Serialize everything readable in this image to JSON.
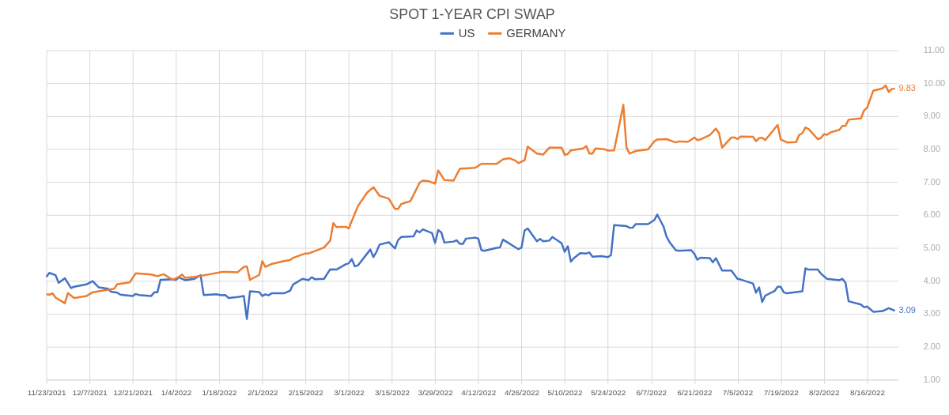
{
  "chart_data": {
    "type": "line",
    "title": "SPOT 1-YEAR CPI SWAP",
    "legend": "top",
    "grid": true,
    "line_style": "solid",
    "xlim": [
      "2021-11-23",
      "2022-08-26"
    ],
    "ylim": [
      1,
      11
    ],
    "xticks": [
      {
        "value": "2021-11-23",
        "label": "11/23/2021"
      },
      {
        "value": "2021-12-07",
        "label": "12/7/2021"
      },
      {
        "value": "2021-12-21",
        "label": "12/21/2021"
      },
      {
        "value": "2022-01-04",
        "label": "1/4/2022"
      },
      {
        "value": "2022-01-18",
        "label": "1/18/2022"
      },
      {
        "value": "2022-02-01",
        "label": "2/1/2022"
      },
      {
        "value": "2022-02-15",
        "label": "2/15/2022"
      },
      {
        "value": "2022-03-01",
        "label": "3/1/2022"
      },
      {
        "value": "2022-03-15",
        "label": "3/15/2022"
      },
      {
        "value": "2022-03-29",
        "label": "3/29/2022"
      },
      {
        "value": "2022-04-12",
        "label": "4/12/2022"
      },
      {
        "value": "2022-04-26",
        "label": "4/26/2022"
      },
      {
        "value": "2022-05-10",
        "label": "5/10/2022"
      },
      {
        "value": "2022-05-24",
        "label": "5/24/2022"
      },
      {
        "value": "2022-06-07",
        "label": "6/7/2022"
      },
      {
        "value": "2022-06-21",
        "label": "6/21/2022"
      },
      {
        "value": "2022-07-05",
        "label": "7/5/2022"
      },
      {
        "value": "2022-07-19",
        "label": "7/19/2022"
      },
      {
        "value": "2022-08-02",
        "label": "8/2/2022"
      },
      {
        "value": "2022-08-16",
        "label": "8/16/2022"
      }
    ],
    "yticks": [
      {
        "value": 1,
        "label": "1.00"
      },
      {
        "value": 2,
        "label": "2.00"
      },
      {
        "value": 3,
        "label": "3.00"
      },
      {
        "value": 4,
        "label": "4.00"
      },
      {
        "value": 5,
        "label": "5.00"
      },
      {
        "value": 6,
        "label": "6.00"
      },
      {
        "value": 7,
        "label": "7.00"
      },
      {
        "value": 8,
        "label": "8.00"
      },
      {
        "value": 9,
        "label": "9.00"
      },
      {
        "value": 10,
        "label": "10.00"
      },
      {
        "value": 11,
        "label": "11.00"
      }
    ],
    "series": [
      {
        "name": "US",
        "color": "#4472c4",
        "x": [
          "2021-11-23",
          "2021-11-24",
          "2021-11-26",
          "2021-11-27",
          "2021-11-29",
          "2021-12-01",
          "2021-12-02",
          "2021-12-06",
          "2021-12-08",
          "2021-12-10",
          "2021-12-13",
          "2021-12-14",
          "2021-12-16",
          "2021-12-17",
          "2021-12-21",
          "2021-12-22",
          "2021-12-23",
          "2021-12-27",
          "2021-12-28",
          "2021-12-29",
          "2021-12-30",
          "2022-01-03",
          "2022-01-04",
          "2022-01-05",
          "2022-01-07",
          "2022-01-10",
          "2022-01-12",
          "2022-01-13",
          "2022-01-17",
          "2022-01-19",
          "2022-01-20",
          "2022-01-21",
          "2022-01-24",
          "2022-01-26",
          "2022-01-27",
          "2022-01-28",
          "2022-01-31",
          "2022-02-01",
          "2022-02-02",
          "2022-02-03",
          "2022-02-04",
          "2022-02-08",
          "2022-02-10",
          "2022-02-11",
          "2022-02-14",
          "2022-02-16",
          "2022-02-17",
          "2022-02-18",
          "2022-02-21",
          "2022-02-23",
          "2022-02-25",
          "2022-02-28",
          "2022-03-01",
          "2022-03-02",
          "2022-03-03",
          "2022-03-04",
          "2022-03-08",
          "2022-03-09",
          "2022-03-10",
          "2022-03-11",
          "2022-03-14",
          "2022-03-16",
          "2022-03-17",
          "2022-03-18",
          "2022-03-22",
          "2022-03-23",
          "2022-03-24",
          "2022-03-25",
          "2022-03-28",
          "2022-03-29",
          "2022-03-30",
          "2022-03-31",
          "2022-04-01",
          "2022-04-04",
          "2022-04-05",
          "2022-04-06",
          "2022-04-07",
          "2022-04-08",
          "2022-04-11",
          "2022-04-12",
          "2022-04-13",
          "2022-04-14",
          "2022-04-18",
          "2022-04-19",
          "2022-04-20",
          "2022-04-25",
          "2022-04-26",
          "2022-04-27",
          "2022-04-28",
          "2022-05-01",
          "2022-05-02",
          "2022-05-03",
          "2022-05-05",
          "2022-05-06",
          "2022-05-09",
          "2022-05-10",
          "2022-05-11",
          "2022-05-12",
          "2022-05-13",
          "2022-05-15",
          "2022-05-17",
          "2022-05-18",
          "2022-05-19",
          "2022-05-22",
          "2022-05-24",
          "2022-05-25",
          "2022-05-26",
          "2022-05-30",
          "2022-05-31",
          "2022-06-01",
          "2022-06-02",
          "2022-06-06",
          "2022-06-08",
          "2022-06-09",
          "2022-06-11",
          "2022-06-12",
          "2022-06-13",
          "2022-06-15",
          "2022-06-16",
          "2022-06-20",
          "2022-06-21",
          "2022-06-22",
          "2022-06-23",
          "2022-06-26",
          "2022-06-27",
          "2022-06-28",
          "2022-06-30",
          "2022-07-03",
          "2022-07-05",
          "2022-07-06",
          "2022-07-10",
          "2022-07-11",
          "2022-07-12",
          "2022-07-13",
          "2022-07-14",
          "2022-07-17",
          "2022-07-18",
          "2022-07-19",
          "2022-07-20",
          "2022-07-21",
          "2022-07-24",
          "2022-07-26",
          "2022-07-27",
          "2022-07-28",
          "2022-07-31",
          "2022-08-01",
          "2022-08-03",
          "2022-08-07",
          "2022-08-08",
          "2022-08-09",
          "2022-08-10",
          "2022-08-14",
          "2022-08-15",
          "2022-08-16",
          "2022-08-18",
          "2022-08-21",
          "2022-08-23",
          "2022-08-25"
        ],
        "values": [
          4.12,
          4.24,
          4.17,
          3.94,
          4.08,
          3.78,
          3.82,
          3.89,
          3.99,
          3.8,
          3.76,
          3.67,
          3.64,
          3.58,
          3.54,
          3.6,
          3.57,
          3.54,
          3.65,
          3.65,
          4.03,
          4.05,
          4.03,
          4.1,
          4.02,
          4.06,
          4.17,
          3.57,
          3.59,
          3.56,
          3.57,
          3.48,
          3.51,
          3.54,
          2.84,
          3.68,
          3.66,
          3.54,
          3.59,
          3.56,
          3.62,
          3.62,
          3.7,
          3.89,
          4.06,
          4.02,
          4.11,
          4.05,
          4.06,
          4.35,
          4.34,
          4.5,
          4.53,
          4.66,
          4.44,
          4.47,
          4.95,
          4.72,
          4.88,
          5.1,
          5.17,
          4.98,
          5.24,
          5.33,
          5.35,
          5.53,
          5.47,
          5.56,
          5.45,
          5.15,
          5.54,
          5.47,
          5.16,
          5.19,
          5.23,
          5.12,
          5.12,
          5.28,
          5.31,
          5.28,
          4.93,
          4.91,
          5.0,
          5.01,
          5.25,
          4.96,
          5.01,
          5.53,
          5.59,
          5.2,
          5.27,
          5.2,
          5.22,
          5.33,
          5.14,
          4.88,
          5.05,
          4.58,
          4.69,
          4.84,
          4.83,
          4.86,
          4.73,
          4.75,
          4.72,
          4.78,
          5.69,
          5.66,
          5.61,
          5.61,
          5.72,
          5.72,
          5.84,
          6.01,
          5.65,
          5.34,
          5.17,
          4.93,
          4.91,
          4.93,
          4.82,
          4.64,
          4.7,
          4.69,
          4.56,
          4.69,
          4.31,
          4.31,
          4.06,
          4.04,
          3.92,
          3.64,
          3.8,
          3.36,
          3.55,
          3.69,
          3.82,
          3.82,
          3.65,
          3.62,
          3.66,
          3.68,
          4.38,
          4.34,
          4.34,
          4.22,
          4.06,
          4.02,
          4.06,
          3.94,
          3.38,
          3.28,
          3.2,
          3.22,
          3.06,
          3.08,
          3.17,
          3.09
        ]
      },
      {
        "name": "GERMANY",
        "color": "#ed7d31",
        "x": [
          "2021-11-23",
          "2021-11-24",
          "2021-11-25",
          "2021-11-26",
          "2021-11-29",
          "2021-11-30",
          "2021-12-02",
          "2021-12-06",
          "2021-12-08",
          "2021-12-15",
          "2021-12-16",
          "2021-12-20",
          "2021-12-22",
          "2021-12-27",
          "2021-12-29",
          "2021-12-31",
          "2022-01-03",
          "2022-01-05",
          "2022-01-06",
          "2022-01-07",
          "2022-01-10",
          "2022-01-12",
          "2022-01-15",
          "2022-01-19",
          "2022-01-21",
          "2022-01-24",
          "2022-01-26",
          "2022-01-27",
          "2022-01-28",
          "2022-01-31",
          "2022-02-01",
          "2022-02-02",
          "2022-02-04",
          "2022-02-08",
          "2022-02-10",
          "2022-02-11",
          "2022-02-15",
          "2022-02-16",
          "2022-02-21",
          "2022-02-23",
          "2022-02-24",
          "2022-02-25",
          "2022-02-28",
          "2022-03-01",
          "2022-03-04",
          "2022-03-07",
          "2022-03-09",
          "2022-03-11",
          "2022-03-14",
          "2022-03-16",
          "2022-03-17",
          "2022-03-18",
          "2022-03-21",
          "2022-03-24",
          "2022-03-25",
          "2022-03-27",
          "2022-03-29",
          "2022-03-30",
          "2022-04-01",
          "2022-04-04",
          "2022-04-06",
          "2022-04-11",
          "2022-04-13",
          "2022-04-18",
          "2022-04-20",
          "2022-04-22",
          "2022-04-24",
          "2022-04-25",
          "2022-04-27",
          "2022-04-28",
          "2022-05-01",
          "2022-05-03",
          "2022-05-05",
          "2022-05-09",
          "2022-05-10",
          "2022-05-11",
          "2022-05-12",
          "2022-05-16",
          "2022-05-17",
          "2022-05-18",
          "2022-05-19",
          "2022-05-20",
          "2022-05-23",
          "2022-05-24",
          "2022-05-26",
          "2022-05-29",
          "2022-05-30",
          "2022-05-31",
          "2022-06-02",
          "2022-06-06",
          "2022-06-08",
          "2022-06-09",
          "2022-06-12",
          "2022-06-14",
          "2022-06-15",
          "2022-06-16",
          "2022-06-19",
          "2022-06-21",
          "2022-06-22",
          "2022-06-23",
          "2022-06-26",
          "2022-06-28",
          "2022-06-29",
          "2022-06-30",
          "2022-07-03",
          "2022-07-04",
          "2022-07-05",
          "2022-07-06",
          "2022-07-10",
          "2022-07-11",
          "2022-07-12",
          "2022-07-13",
          "2022-07-14",
          "2022-07-18",
          "2022-07-19",
          "2022-07-21",
          "2022-07-24",
          "2022-07-25",
          "2022-07-26",
          "2022-07-27",
          "2022-07-28",
          "2022-07-31",
          "2022-08-01",
          "2022-08-02",
          "2022-08-03",
          "2022-08-04",
          "2022-08-07",
          "2022-08-08",
          "2022-08-09",
          "2022-08-10",
          "2022-08-14",
          "2022-08-15",
          "2022-08-16",
          "2022-08-18",
          "2022-08-21",
          "2022-08-22",
          "2022-08-23",
          "2022-08-24",
          "2022-08-25"
        ],
        "values": [
          3.59,
          3.58,
          3.62,
          3.49,
          3.32,
          3.63,
          3.48,
          3.54,
          3.65,
          3.76,
          3.9,
          3.95,
          4.23,
          4.19,
          4.14,
          4.2,
          4.03,
          4.12,
          4.19,
          4.09,
          4.12,
          4.15,
          4.2,
          4.27,
          4.27,
          4.26,
          4.42,
          4.44,
          4.03,
          4.18,
          4.6,
          4.42,
          4.51,
          4.6,
          4.63,
          4.7,
          4.83,
          4.83,
          5.01,
          5.22,
          5.75,
          5.63,
          5.64,
          5.59,
          6.27,
          6.68,
          6.84,
          6.58,
          6.49,
          6.18,
          6.18,
          6.33,
          6.42,
          6.98,
          7.04,
          7.02,
          6.95,
          7.35,
          7.06,
          7.04,
          7.4,
          7.43,
          7.55,
          7.55,
          7.69,
          7.72,
          7.65,
          7.57,
          7.66,
          8.07,
          7.86,
          7.83,
          8.04,
          8.04,
          7.82,
          7.85,
          7.96,
          8.02,
          8.09,
          7.86,
          7.86,
          8.02,
          7.99,
          7.95,
          7.96,
          9.34,
          8.05,
          7.86,
          7.94,
          7.99,
          8.23,
          8.29,
          8.3,
          8.23,
          8.2,
          8.23,
          8.22,
          8.35,
          8.27,
          8.29,
          8.42,
          8.62,
          8.48,
          8.04,
          8.35,
          8.35,
          8.3,
          8.38,
          8.37,
          8.24,
          8.33,
          8.34,
          8.27,
          8.73,
          8.29,
          8.2,
          8.21,
          8.43,
          8.48,
          8.65,
          8.61,
          8.3,
          8.33,
          8.45,
          8.43,
          8.5,
          8.58,
          8.7,
          8.7,
          8.89,
          8.93,
          9.17,
          9.25,
          9.77,
          9.84,
          9.93,
          9.73,
          9.82,
          9.83
        ]
      }
    ],
    "annotations": [
      {
        "text": "3.09",
        "x": "2022-08-25",
        "y": 3.09
      },
      {
        "text": "9.83",
        "x": "2022-08-25",
        "y": 9.83
      }
    ]
  }
}
